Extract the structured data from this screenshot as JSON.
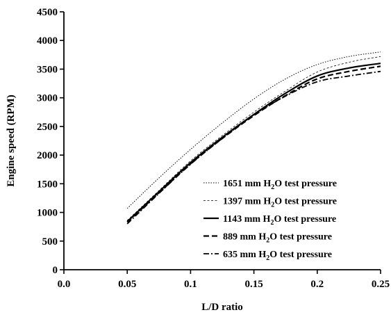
{
  "chart_data": {
    "type": "line",
    "title": "",
    "xlabel": "L/D ratio",
    "ylabel": "Engine speed (RPM)",
    "xlim": [
      0.0,
      0.25
    ],
    "ylim": [
      0,
      4500
    ],
    "x_ticks": [
      "0.0",
      "0.05",
      "0.1",
      "0.15",
      "0.2",
      "0.25"
    ],
    "y_ticks": [
      "0",
      "500",
      "1000",
      "1500",
      "2000",
      "2500",
      "3000",
      "3500",
      "4000",
      "4500"
    ],
    "grid": false,
    "legend_position": "lower-right",
    "series": [
      {
        "name_prefix": "1651 mm H",
        "name_sub": "2",
        "name_suffix": "O test pressure",
        "dash": "dotted",
        "stroke_width": 1.0,
        "x": [
          0.05,
          0.075,
          0.1,
          0.125,
          0.15,
          0.175,
          0.2,
          0.225,
          0.25
        ],
        "y": [
          1070,
          1600,
          2100,
          2560,
          2980,
          3330,
          3580,
          3720,
          3800
        ]
      },
      {
        "name_prefix": "1397 mm H",
        "name_sub": "2",
        "name_suffix": "O test pressure",
        "dash": "dashed-fine",
        "stroke_width": 0.8,
        "x": [
          0.05,
          0.075,
          0.1,
          0.125,
          0.15,
          0.175,
          0.2,
          0.225,
          0.25
        ],
        "y": [
          860,
          1380,
          1900,
          2340,
          2750,
          3120,
          3450,
          3620,
          3720
        ]
      },
      {
        "name_prefix": "1143 mm H",
        "name_sub": "2",
        "name_suffix": "O test pressure",
        "dash": "solid",
        "stroke_width": 2.2,
        "x": [
          0.05,
          0.075,
          0.1,
          0.125,
          0.15,
          0.175,
          0.2,
          0.225,
          0.25
        ],
        "y": [
          840,
          1360,
          1870,
          2310,
          2710,
          3080,
          3380,
          3520,
          3600
        ]
      },
      {
        "name_prefix": "889 mm H",
        "name_sub": "2",
        "name_suffix": "O test pressure",
        "dash": "dashed",
        "stroke_width": 2.2,
        "x": [
          0.05,
          0.075,
          0.1,
          0.125,
          0.15,
          0.175,
          0.2,
          0.225,
          0.25
        ],
        "y": [
          830,
          1340,
          1850,
          2290,
          2690,
          3040,
          3330,
          3460,
          3550
        ]
      },
      {
        "name_prefix": "635 mm H",
        "name_sub": "2",
        "name_suffix": "O test pressure",
        "dash": "dash-dot",
        "stroke_width": 1.8,
        "x": [
          0.05,
          0.075,
          0.1,
          0.125,
          0.15,
          0.175,
          0.2,
          0.225,
          0.25
        ],
        "y": [
          800,
          1330,
          1840,
          2290,
          2700,
          3030,
          3280,
          3380,
          3460
        ]
      }
    ]
  }
}
